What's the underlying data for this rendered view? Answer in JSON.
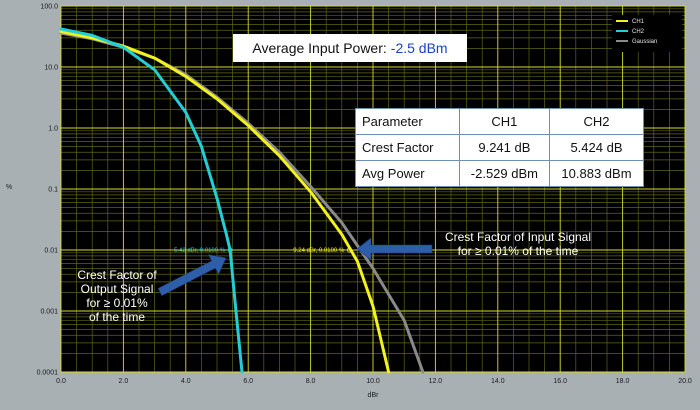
{
  "annotations": {
    "avg_input_label": "Average Input Power:",
    "avg_input_value": "-2.5 dBm",
    "callout_output": [
      "Crest Factor of",
      "Output Signal",
      "for ≥ 0.01%",
      "of the time"
    ],
    "callout_input": [
      "Crest Factor of Input Signal",
      "for ≥ 0.01% of the time"
    ],
    "marker_ch2": "5.42 dBr, 0.0100 %",
    "marker_ch1": "9.24 dBr, 0.0100 %"
  },
  "table": {
    "headers": [
      "Parameter",
      "CH1",
      "CH2"
    ],
    "rows": [
      [
        "Crest Factor",
        "9.241 dB",
        "5.424 dB"
      ],
      [
        "Avg Power",
        "-2.529 dBm",
        "10.883 dBm"
      ]
    ]
  },
  "colors": {
    "background": "#000000",
    "grid_major": "#d6dc2a",
    "grid_minor": "#5f6418",
    "ch1": "#f2f21c",
    "ch2": "#22cfd6",
    "gaussian": "#8a8a8a",
    "arrow": "#2f5ea8"
  },
  "chart_data": {
    "type": "line",
    "xlabel": "dBr",
    "ylabel": "%",
    "xlim": [
      0,
      20
    ],
    "ylim": [
      0.0001,
      100
    ],
    "yscale": "log",
    "grid": true,
    "legend_position": "top-right",
    "x_ticks": [
      "0.0",
      "2.0",
      "4.0",
      "6.0",
      "8.0",
      "10.0",
      "12.0",
      "14.0",
      "16.0",
      "18.0",
      "20.0"
    ],
    "y_ticks": [
      "0.0001",
      "0.001",
      "0.01",
      "0.1",
      "1.0",
      "10.0",
      "100.0"
    ],
    "series": [
      {
        "name": "CH1",
        "color": "#f2f21c",
        "x": [
          0,
          1,
          2,
          3,
          4,
          5,
          6,
          7,
          8,
          9,
          9.5,
          10,
          10.5
        ],
        "y": [
          38,
          30,
          22,
          14,
          7,
          3,
          1.1,
          0.35,
          0.09,
          0.018,
          0.0065,
          0.0012,
          0.0001
        ]
      },
      {
        "name": "CH2",
        "color": "#22cfd6",
        "x": [
          0,
          1,
          2,
          3,
          4,
          4.5,
          5,
          5.3,
          5.42,
          5.6,
          5.8
        ],
        "y": [
          42,
          33,
          21,
          9,
          1.8,
          0.5,
          0.07,
          0.018,
          0.01,
          0.0011,
          0.0001
        ]
      },
      {
        "name": "Gaussian",
        "color": "#8a8a8a",
        "x": [
          0,
          1,
          2,
          3,
          4,
          5,
          6,
          7,
          8,
          9,
          10,
          11,
          11.6
        ],
        "y": [
          36,
          29,
          21,
          14,
          7.5,
          3.2,
          1.2,
          0.4,
          0.11,
          0.028,
          0.005,
          0.0007,
          0.0001
        ]
      }
    ],
    "markers": [
      {
        "series": "CH2",
        "x": 5.42,
        "y": 0.01
      },
      {
        "series": "CH1",
        "x": 9.24,
        "y": 0.01
      }
    ]
  }
}
